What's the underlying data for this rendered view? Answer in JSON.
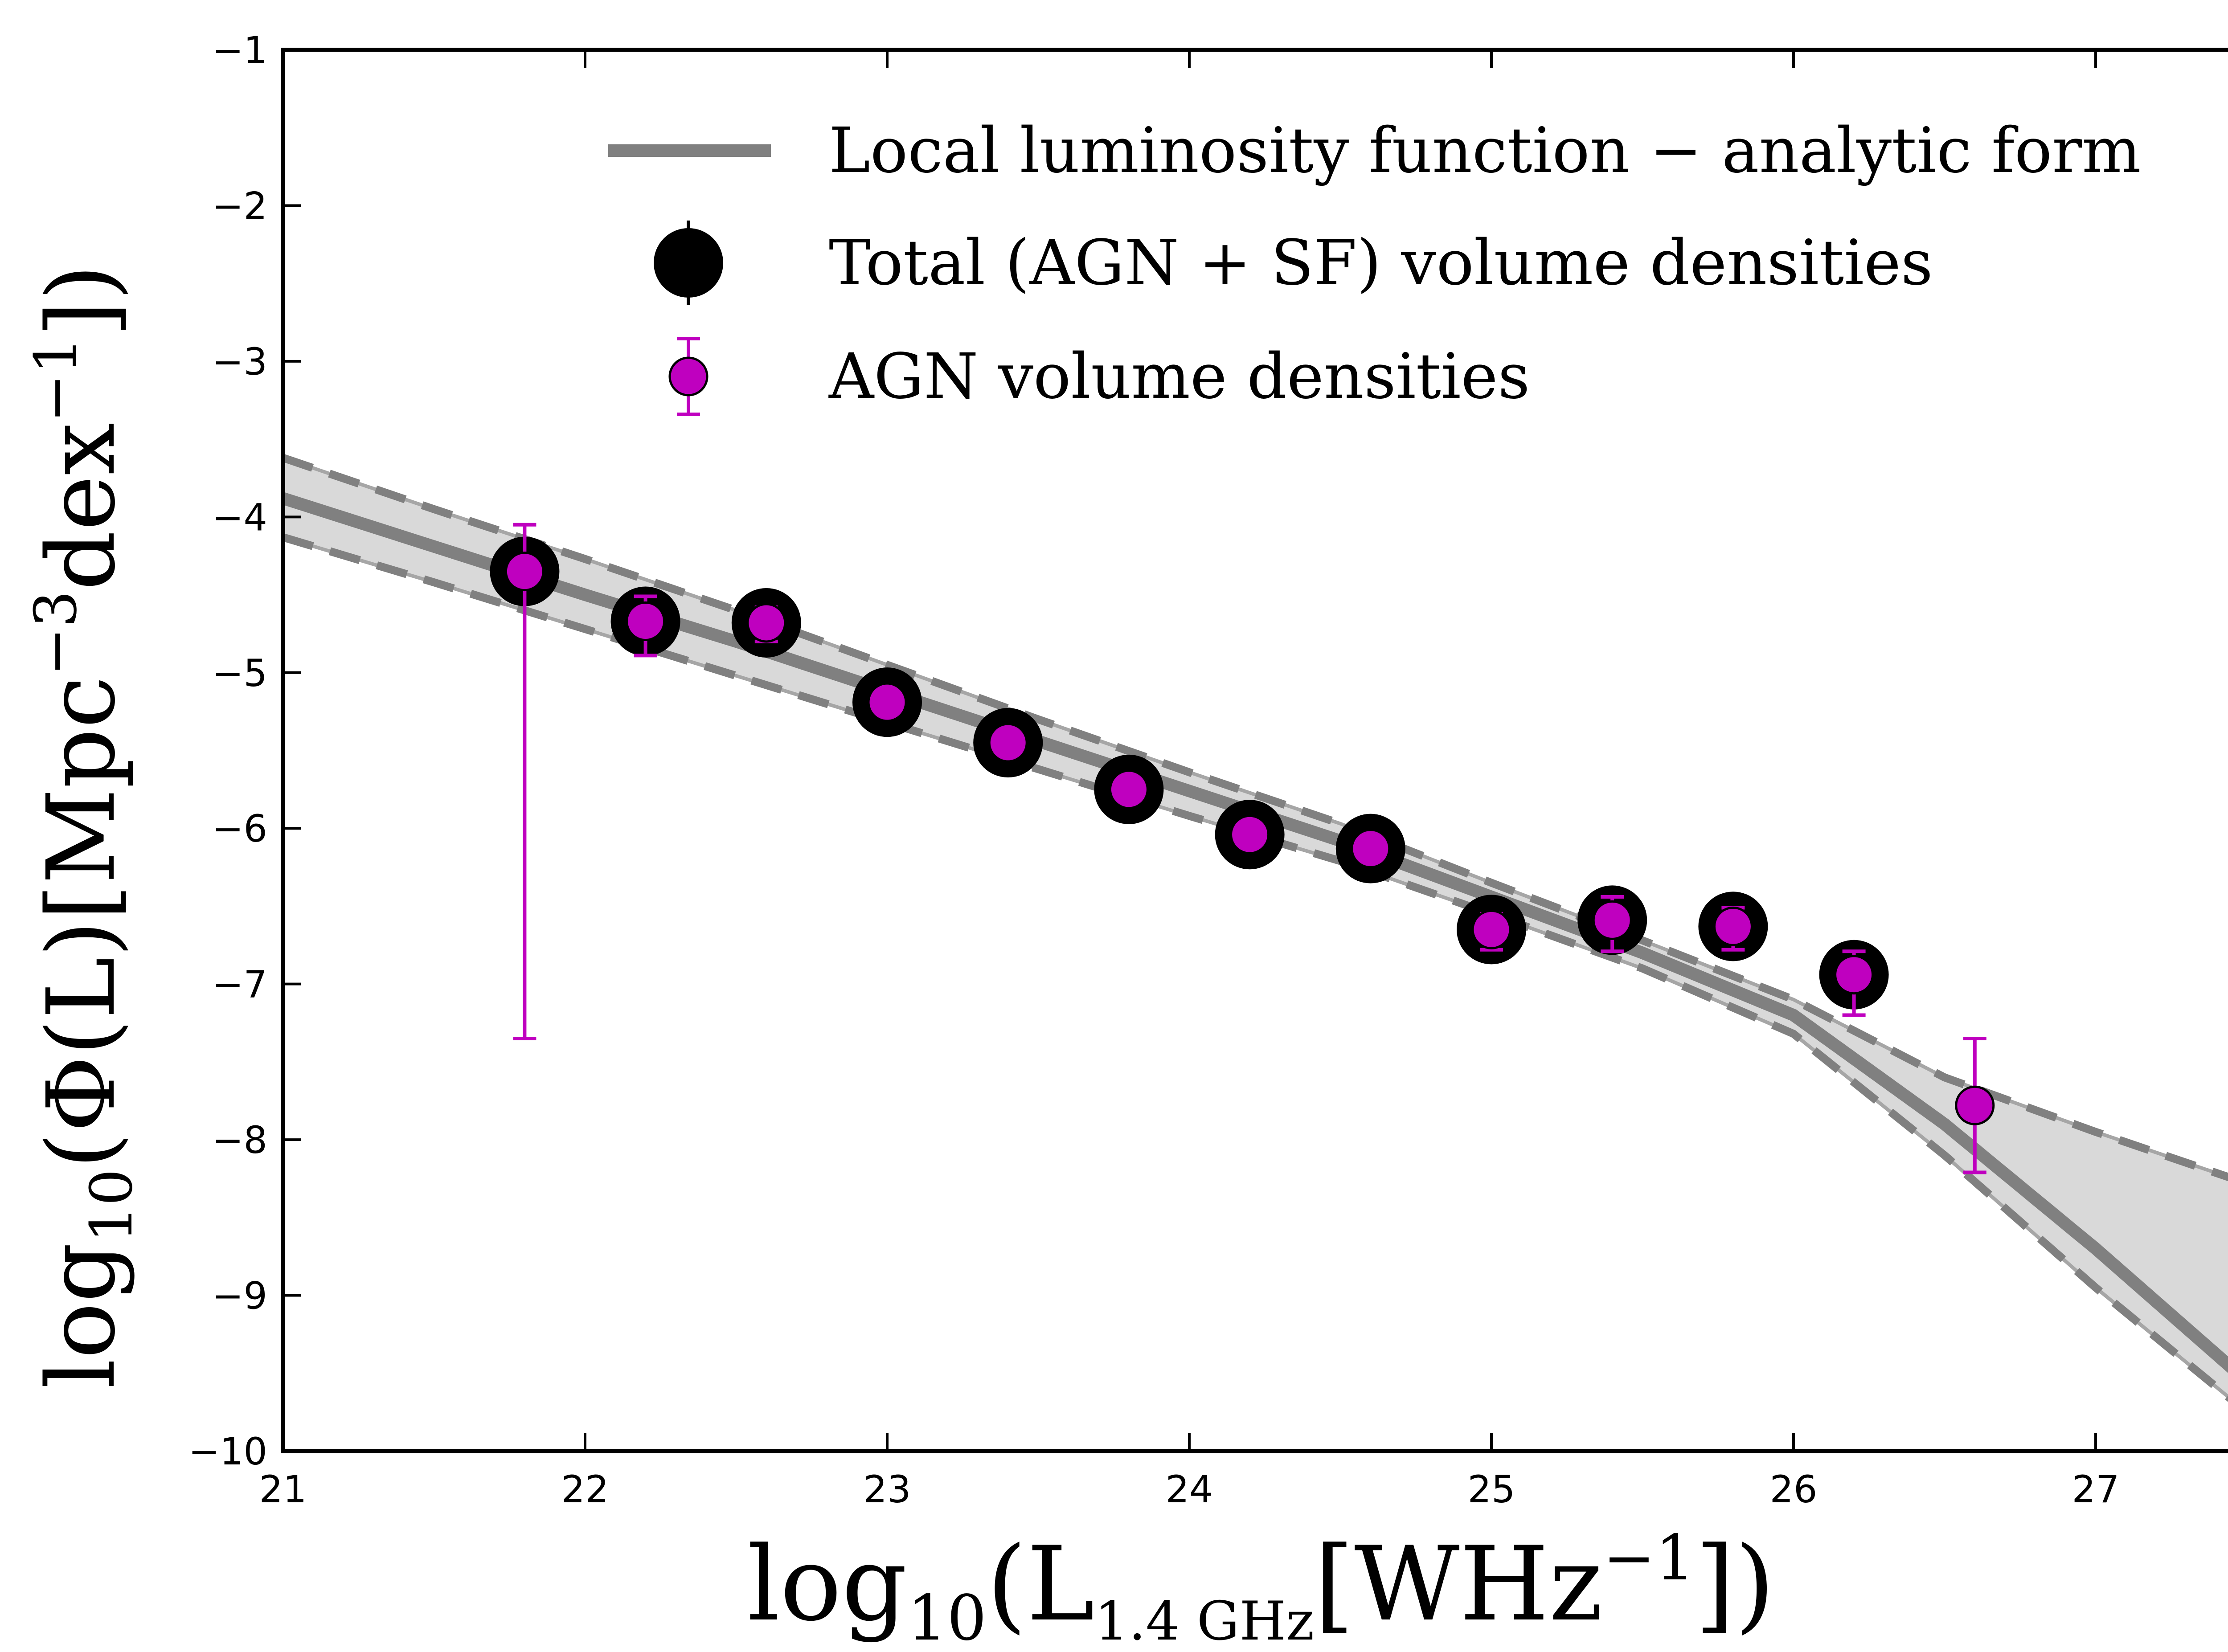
{
  "chart_data": {
    "type": "scatter",
    "xlabel": {
      "pre": "log",
      "pre_sub": "10",
      "open": "(L",
      "sub": "1.4 GHz",
      "mid": "[WHz",
      "sup": "−1",
      "close": "])"
    },
    "ylabel": {
      "pre": "log",
      "pre_sub": "10",
      "open": "(Φ(L)[Mpc",
      "sup1": "−3",
      "mid": "dex",
      "sup2": "−1",
      "close": "])"
    },
    "xlim": [
      21,
      27.5
    ],
    "ylim": [
      -10,
      -1
    ],
    "xticks": [
      21,
      22,
      23,
      24,
      25,
      26,
      27
    ],
    "yticks": [
      -1,
      -2,
      -3,
      -4,
      -5,
      -6,
      -7,
      -8,
      -9,
      -10
    ],
    "xtick_labels": [
      "21",
      "22",
      "23",
      "24",
      "25",
      "26",
      "27"
    ],
    "ytick_labels": [
      "−1",
      "−2",
      "−3",
      "−4",
      "−5",
      "−6",
      "−7",
      "−8",
      "−9",
      "−10"
    ],
    "legend": {
      "location": "top-right",
      "entries": [
        "Local luminosity function − analytic form",
        "Total (AGN + SF) volume densities",
        "AGN volume densities"
      ]
    },
    "colors": {
      "model": "#808080",
      "band_fill": "#d9d9d9",
      "total": "#000000",
      "agn": "#bf00bf"
    },
    "series": [
      {
        "name": "Local luminosity function − analytic form",
        "kind": "line",
        "x": [
          21,
          21.5,
          22,
          22.5,
          23,
          23.5,
          24,
          24.5,
          25,
          25.5,
          26,
          26.5,
          27,
          27.5
        ],
        "y": [
          -3.88,
          -4.19,
          -4.5,
          -4.8,
          -5.12,
          -5.44,
          -5.76,
          -6.08,
          -6.44,
          -6.8,
          -7.2,
          -7.9,
          -8.7,
          -9.55
        ],
        "upper": [
          -3.62,
          -3.95,
          -4.27,
          -4.6,
          -4.95,
          -5.3,
          -5.64,
          -5.97,
          -6.35,
          -6.72,
          -7.1,
          -7.6,
          -7.95,
          -8.28
        ],
        "lower": [
          -4.13,
          -4.42,
          -4.72,
          -5.02,
          -5.32,
          -5.62,
          -5.92,
          -6.21,
          -6.55,
          -6.9,
          -7.32,
          -8.1,
          -8.95,
          -9.75
        ]
      },
      {
        "name": "Total (AGN + SF) volume densities",
        "kind": "points",
        "x": [
          21.8,
          22.2,
          22.6,
          23.0,
          23.4,
          23.8,
          24.2,
          24.6,
          25.0,
          25.4,
          25.8,
          26.2
        ],
        "y": [
          -4.35,
          -4.67,
          -4.68,
          -5.19,
          -5.45,
          -5.75,
          -6.04,
          -6.13,
          -6.65,
          -6.59,
          -6.63,
          -6.94
        ]
      },
      {
        "name": "AGN volume densities",
        "kind": "points",
        "x": [
          21.8,
          22.2,
          22.6,
          23.0,
          23.4,
          23.8,
          24.2,
          24.6,
          25.0,
          25.4,
          25.8,
          26.2,
          26.6
        ],
        "y": [
          -4.35,
          -4.67,
          -4.68,
          -5.19,
          -5.45,
          -5.75,
          -6.04,
          -6.13,
          -6.65,
          -6.59,
          -6.63,
          -6.94,
          -7.78
        ],
        "err_low": [
          3.0,
          0.22,
          0.12,
          0.06,
          0.06,
          0.06,
          0.06,
          0.06,
          0.13,
          0.2,
          0.15,
          0.26,
          0.43
        ],
        "err_high": [
          0.3,
          0.16,
          0.1,
          0.06,
          0.06,
          0.06,
          0.06,
          0.06,
          0.1,
          0.15,
          0.12,
          0.15,
          0.43
        ]
      }
    ]
  }
}
